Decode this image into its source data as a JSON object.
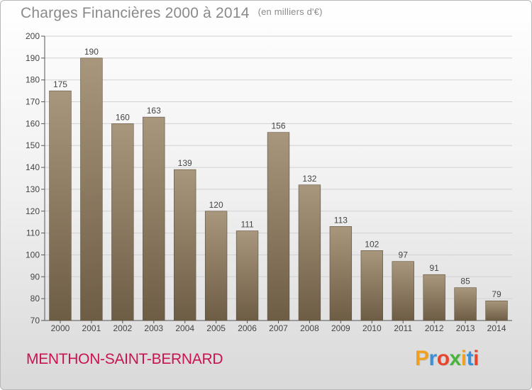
{
  "header": {
    "title": "Charges Financières 2000 à 2014",
    "subtitle": "(en milliers d'€)"
  },
  "footer": {
    "town": "MENTHON-SAINT-BERNARD",
    "logo": {
      "letters": [
        "P",
        "r",
        "o",
        "x",
        "i",
        "t",
        "i"
      ],
      "colors": [
        "#f0a020",
        "#3a8fd6",
        "#e8452c",
        "#49b43c",
        "#f0a020",
        "#3a8fd6",
        "#e8452c"
      ]
    }
  },
  "chart_data": {
    "type": "bar",
    "categories": [
      "2000",
      "2001",
      "2002",
      "2003",
      "2004",
      "2005",
      "2006",
      "2007",
      "2008",
      "2009",
      "2010",
      "2011",
      "2012",
      "2013",
      "2014"
    ],
    "values": [
      175,
      190,
      160,
      163,
      139,
      120,
      111,
      156,
      132,
      113,
      102,
      97,
      91,
      85,
      79
    ],
    "title": "Charges Financières 2000 à 2014",
    "ylim": [
      70,
      200
    ],
    "yticks": [
      70,
      80,
      90,
      100,
      110,
      120,
      130,
      140,
      150,
      160,
      170,
      180,
      190,
      200
    ],
    "grid": true,
    "bar_color": "#8e7b61"
  }
}
